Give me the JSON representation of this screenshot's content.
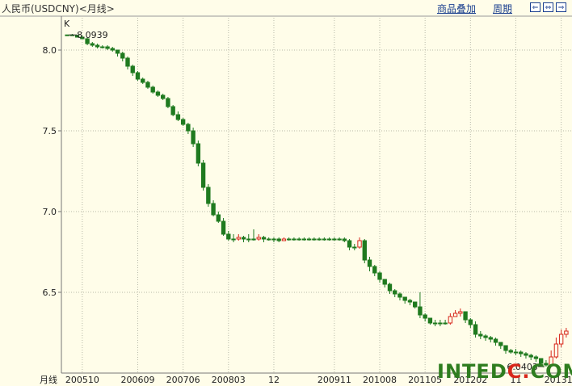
{
  "header": {
    "title": "人民币(USDCNY)<月线>",
    "overlay_label": "商品叠加",
    "period_label": "周期",
    "nav_left": "⇐",
    "nav_right": "⇒",
    "nav_fit": "⇔"
  },
  "panel_label": "K",
  "footer_label": "月线",
  "watermark": {
    "text": "INTEDC.COM",
    "colors": [
      "#2e7d1f",
      "#d7261b"
    ]
  },
  "colors": {
    "up": "#d7261b",
    "down": "#1f7a1f",
    "grid": "#b9b9a8",
    "bg": "#fffde9"
  },
  "chart_data": {
    "type": "candlestick",
    "ylim": [
      6.0,
      8.2
    ],
    "y_ticks": [
      "8.0",
      "7.5",
      "7.0",
      "6.5"
    ],
    "y_tick_values": [
      8.0,
      7.5,
      7.0,
      6.5
    ],
    "x_tick_labels": [
      "200510",
      "200609",
      "200706",
      "200803",
      "12",
      "200911",
      "201008",
      "201105",
      "201202",
      "11",
      "201310"
    ],
    "x_tick_index": [
      3,
      14,
      23,
      32,
      41,
      53,
      62,
      71,
      80,
      89,
      98
    ],
    "high_label": "8.0939",
    "low_label": "6.0403",
    "closes": [
      8.0939,
      8.09,
      8.08,
      8.07,
      8.04,
      8.03,
      8.02,
      8.02,
      8.01,
      8.0,
      7.98,
      7.95,
      7.9,
      7.86,
      7.82,
      7.8,
      7.77,
      7.74,
      7.72,
      7.7,
      7.65,
      7.6,
      7.57,
      7.54,
      7.5,
      7.42,
      7.3,
      7.15,
      7.05,
      6.98,
      6.94,
      6.86,
      6.83,
      6.83,
      6.84,
      6.83,
      6.83,
      6.83,
      6.84,
      6.83,
      6.83,
      6.83,
      6.82,
      6.83,
      6.83,
      6.83,
      6.83,
      6.83,
      6.83,
      6.83,
      6.83,
      6.83,
      6.83,
      6.83,
      6.83,
      6.82,
      6.78,
      6.78,
      6.82,
      6.7,
      6.66,
      6.62,
      6.58,
      6.55,
      6.51,
      6.49,
      6.47,
      6.45,
      6.44,
      6.41,
      6.36,
      6.34,
      6.31,
      6.31,
      6.31,
      6.31,
      6.35,
      6.37,
      6.38,
      6.33,
      6.3,
      6.24,
      6.23,
      6.22,
      6.21,
      6.19,
      6.17,
      6.14,
      6.13,
      6.13,
      6.12,
      6.11,
      6.1,
      6.09,
      6.06,
      6.05,
      6.1,
      6.18,
      6.24,
      6.26
    ],
    "ranges": [
      [
        8.0939,
        8.0939
      ],
      [
        8.09,
        8.1
      ],
      [
        8.08,
        8.095
      ],
      [
        8.07,
        8.09
      ],
      [
        8.03,
        8.08
      ],
      [
        8.02,
        8.05
      ],
      [
        8.01,
        8.04
      ],
      [
        8.01,
        8.03
      ],
      [
        8.0,
        8.03
      ],
      [
        7.99,
        8.02
      ],
      [
        7.96,
        8.0
      ],
      [
        7.93,
        7.99
      ],
      [
        7.88,
        7.96
      ],
      [
        7.84,
        7.91
      ],
      [
        7.81,
        7.87
      ],
      [
        7.79,
        7.83
      ],
      [
        7.76,
        7.81
      ],
      [
        7.73,
        7.78
      ],
      [
        7.71,
        7.75
      ],
      [
        7.69,
        7.73
      ],
      [
        7.64,
        7.71
      ],
      [
        7.59,
        7.66
      ],
      [
        7.56,
        7.62
      ],
      [
        7.53,
        7.58
      ],
      [
        7.48,
        7.55
      ],
      [
        7.4,
        7.52
      ],
      [
        7.28,
        7.44
      ],
      [
        7.13,
        7.32
      ],
      [
        7.03,
        7.17
      ],
      [
        6.97,
        7.07
      ],
      [
        6.93,
        7.0
      ],
      [
        6.85,
        6.96
      ],
      [
        6.82,
        6.88
      ],
      [
        6.81,
        6.86
      ],
      [
        6.82,
        6.86
      ],
      [
        6.81,
        6.85
      ],
      [
        6.81,
        6.86
      ],
      [
        6.82,
        6.89
      ],
      [
        6.82,
        6.86
      ],
      [
        6.81,
        6.85
      ],
      [
        6.82,
        6.84
      ],
      [
        6.81,
        6.84
      ],
      [
        6.81,
        6.84
      ],
      [
        6.82,
        6.84
      ],
      [
        6.82,
        6.84
      ],
      [
        6.82,
        6.84
      ],
      [
        6.82,
        6.84
      ],
      [
        6.82,
        6.84
      ],
      [
        6.82,
        6.84
      ],
      [
        6.82,
        6.84
      ],
      [
        6.82,
        6.84
      ],
      [
        6.82,
        6.84
      ],
      [
        6.82,
        6.84
      ],
      [
        6.82,
        6.84
      ],
      [
        6.82,
        6.84
      ],
      [
        6.81,
        6.84
      ],
      [
        6.76,
        6.83
      ],
      [
        6.76,
        6.8
      ],
      [
        6.77,
        6.84
      ],
      [
        6.68,
        6.83
      ],
      [
        6.63,
        6.72
      ],
      [
        6.6,
        6.67
      ],
      [
        6.56,
        6.63
      ],
      [
        6.53,
        6.58
      ],
      [
        6.49,
        6.56
      ],
      [
        6.47,
        6.52
      ],
      [
        6.45,
        6.5
      ],
      [
        6.43,
        6.47
      ],
      [
        6.42,
        6.46
      ],
      [
        6.4,
        6.44
      ],
      [
        6.34,
        6.5
      ],
      [
        6.32,
        6.37
      ],
      [
        6.3,
        6.34
      ],
      [
        6.29,
        6.33
      ],
      [
        6.29,
        6.33
      ],
      [
        6.3,
        6.33
      ],
      [
        6.3,
        6.37
      ],
      [
        6.35,
        6.39
      ],
      [
        6.35,
        6.4
      ],
      [
        6.31,
        6.38
      ],
      [
        6.28,
        6.34
      ],
      [
        6.22,
        6.32
      ],
      [
        6.21,
        6.26
      ],
      [
        6.2,
        6.24
      ],
      [
        6.19,
        6.23
      ],
      [
        6.17,
        6.22
      ],
      [
        6.15,
        6.19
      ],
      [
        6.12,
        6.16
      ],
      [
        6.12,
        6.15
      ],
      [
        6.11,
        6.15
      ],
      [
        6.1,
        6.14
      ],
      [
        6.09,
        6.13
      ],
      [
        6.08,
        6.12
      ],
      [
        6.07,
        6.11
      ],
      [
        6.04,
        6.09
      ],
      [
        6.0403,
        6.08
      ],
      [
        6.05,
        6.14
      ],
      [
        6.09,
        6.22
      ],
      [
        6.16,
        6.27
      ],
      [
        6.22,
        6.28
      ]
    ]
  }
}
